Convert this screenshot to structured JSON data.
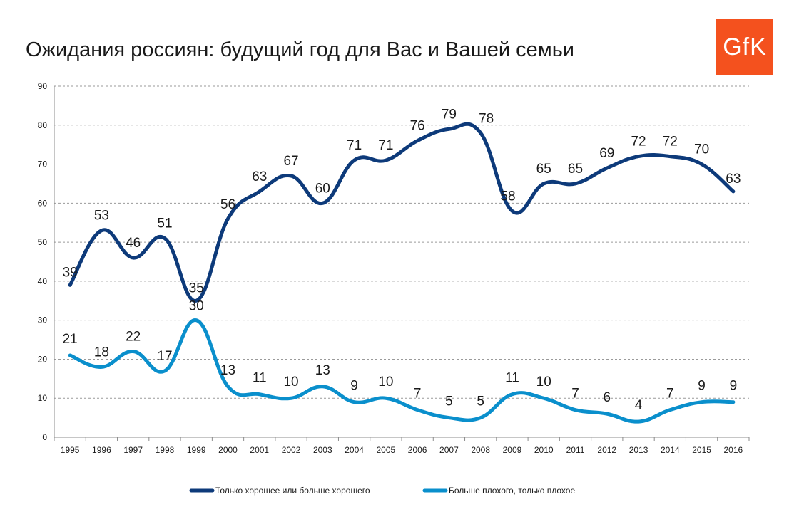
{
  "title": "Ожидания россиян: будущий год для Вас и Вашей семьи",
  "logo": {
    "text": "GfK",
    "color": "#f4511e"
  },
  "chart_data": {
    "type": "line",
    "title": "Ожидания россиян: будущий год для Вас и Вашей семьи",
    "categories": [
      "1995",
      "1996",
      "1997",
      "1998",
      "1999",
      "2000",
      "2001",
      "2002",
      "2003",
      "2004",
      "2005",
      "2006",
      "2007",
      "2008",
      "2009",
      "2010",
      "2011",
      "2012",
      "2013",
      "2014",
      "2015",
      "2016"
    ],
    "ylim": [
      0,
      90
    ],
    "yticks": [
      0,
      10,
      20,
      30,
      40,
      50,
      60,
      70,
      80,
      90
    ],
    "grid": true,
    "legend_position": "bottom",
    "series": [
      {
        "name": "Только хорошее или больше хорошего",
        "color": "#0d3a7a",
        "values": [
          39,
          53,
          46,
          51,
          35,
          56,
          63,
          67,
          60,
          71,
          71,
          76,
          79,
          78,
          58,
          65,
          65,
          69,
          72,
          72,
          70,
          63
        ]
      },
      {
        "name": "Больше плохого, только плохое",
        "color": "#0a8fcc",
        "values": [
          21,
          18,
          22,
          17,
          30,
          13,
          11,
          10,
          13,
          9,
          10,
          7,
          5,
          5,
          11,
          10,
          7,
          6,
          4,
          7,
          9,
          9
        ]
      }
    ]
  }
}
